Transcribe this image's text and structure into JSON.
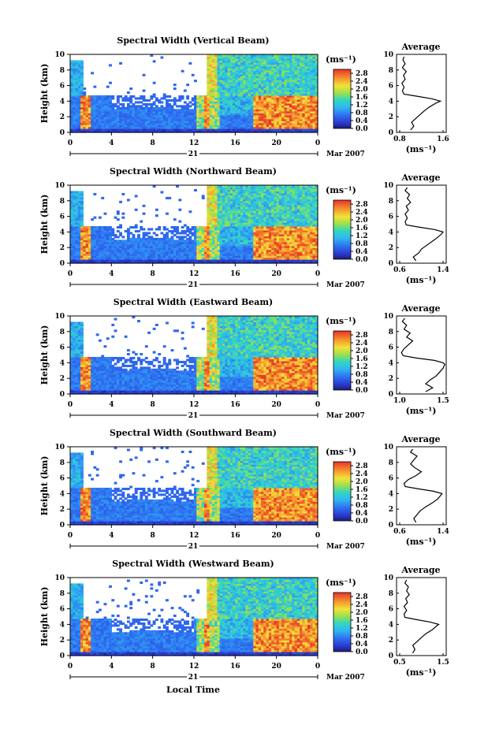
{
  "panels": [
    {
      "title": "Spectral Width (Vertical Beam)",
      "beam": "vertical",
      "avg_xlim": [
        0.8,
        1.6
      ],
      "avg_ticks": [
        "0.8",
        "1.6"
      ]
    },
    {
      "title": "Spectral Width (Northward Beam)",
      "beam": "northward",
      "avg_xlim": [
        0.6,
        1.4
      ],
      "avg_ticks": [
        "0.6",
        "1.4"
      ]
    },
    {
      "title": "Spectral Width (Eastward Beam)",
      "beam": "eastward",
      "avg_xlim": [
        1.0,
        1.5
      ],
      "avg_ticks": [
        "1.0",
        "1.5"
      ]
    },
    {
      "title": "Spectral Width (Southward Beam)",
      "beam": "southward",
      "avg_xlim": [
        0.6,
        1.4
      ],
      "avg_ticks": [
        "0.6",
        "1.4"
      ]
    },
    {
      "title": "Spectral Width (Westward Beam)",
      "beam": "westward",
      "avg_xlim": [
        0.5,
        1.5
      ],
      "avg_ticks": [
        "0.5",
        "1.5"
      ]
    }
  ],
  "labels": {
    "height_axis": "Height (km)",
    "unit": "(ms⁻¹)",
    "average_title": "Average",
    "date_day": "21",
    "date_month_year": "Mar 2007",
    "local_time": "Local Time"
  },
  "chart_data": {
    "type": "heatmap",
    "x_axis": {
      "label": "Local Time",
      "range": [
        0,
        24
      ],
      "ticks": [
        "0",
        "4",
        "8",
        "12",
        "16",
        "20",
        "0"
      ]
    },
    "y_axis": {
      "label": "Height (km)",
      "range": [
        0,
        10
      ],
      "ticks": [
        "0",
        "2",
        "4",
        "6",
        "8",
        "10"
      ]
    },
    "colorbar": {
      "label": "(ms⁻¹)",
      "range": [
        0,
        3.0
      ],
      "ticks": [
        "0.0",
        "0.4",
        "0.8",
        "1.2",
        "1.6",
        "2.0",
        "2.4",
        "2.8"
      ]
    },
    "features": {
      "high_width_columns_hours": [
        [
          1.0,
          2.0
        ],
        [
          12.9,
          13.5
        ],
        [
          17.8,
          24.0
        ]
      ],
      "high_width_layer_km": [
        0.5,
        4.6
      ],
      "upper_echo_layer_km": [
        5.0,
        10.0
      ],
      "lower_layer_top_km": 4.6
    },
    "average_profiles": [
      {
        "beam": "vertical",
        "heights_km": [
          0.3,
          0.8,
          1.3,
          1.8,
          2.3,
          2.8,
          3.3,
          3.8,
          4.0,
          4.3,
          4.6,
          4.9,
          5.3,
          5.8,
          6.3,
          6.8,
          7.3,
          7.8,
          8.3,
          8.8,
          9.3,
          9.7
        ],
        "values": [
          1.0,
          1.06,
          1.02,
          1.1,
          1.18,
          1.26,
          1.36,
          1.48,
          1.55,
          1.4,
          1.15,
          0.88,
          0.85,
          0.88,
          0.84,
          0.9,
          0.87,
          0.92,
          0.85,
          0.9,
          0.86,
          0.88
        ]
      },
      {
        "beam": "northward",
        "heights_km": [
          0.3,
          0.8,
          1.3,
          1.8,
          2.3,
          2.8,
          3.3,
          3.8,
          4.0,
          4.3,
          4.6,
          4.9,
          5.3,
          5.8,
          6.3,
          6.8,
          7.3,
          7.8,
          8.3,
          8.8,
          9.3,
          9.7
        ],
        "values": [
          0.9,
          0.85,
          0.95,
          1.0,
          1.1,
          1.2,
          1.3,
          1.38,
          1.4,
          1.25,
          0.98,
          0.72,
          0.7,
          0.74,
          0.7,
          0.76,
          0.72,
          0.8,
          0.74,
          0.78,
          0.7,
          0.74
        ]
      },
      {
        "beam": "eastward",
        "heights_km": [
          0.3,
          0.8,
          1.3,
          1.8,
          2.3,
          2.8,
          3.3,
          3.8,
          4.0,
          4.3,
          4.6,
          4.9,
          5.3,
          5.8,
          6.3,
          6.8,
          7.3,
          7.8,
          8.3,
          8.8,
          9.3,
          9.7
        ],
        "values": [
          1.3,
          1.38,
          1.3,
          1.35,
          1.42,
          1.46,
          1.5,
          1.52,
          1.5,
          1.4,
          1.2,
          1.04,
          1.02,
          1.05,
          1.1,
          1.15,
          1.08,
          1.12,
          1.05,
          1.08,
          1.03,
          1.06
        ]
      },
      {
        "beam": "southward",
        "heights_km": [
          0.3,
          0.8,
          1.3,
          1.8,
          2.3,
          2.8,
          3.3,
          3.8,
          4.0,
          4.3,
          4.6,
          4.9,
          5.3,
          5.8,
          6.3,
          6.8,
          7.3,
          7.8,
          8.3,
          8.8,
          9.3,
          9.7
        ],
        "values": [
          0.9,
          0.86,
          0.92,
          0.98,
          1.08,
          1.2,
          1.3,
          1.36,
          1.38,
          1.22,
          0.95,
          0.7,
          0.68,
          0.76,
          0.9,
          1.0,
          0.88,
          0.8,
          0.86,
          0.92,
          0.8,
          0.84
        ]
      },
      {
        "beam": "westward",
        "heights_km": [
          0.3,
          0.8,
          1.3,
          1.8,
          2.3,
          2.8,
          3.3,
          3.8,
          4.0,
          4.3,
          4.6,
          4.9,
          5.3,
          5.8,
          6.3,
          6.8,
          7.3,
          7.8,
          8.3,
          8.8,
          9.3,
          9.7
        ],
        "values": [
          0.8,
          0.85,
          0.8,
          0.9,
          1.0,
          1.1,
          1.25,
          1.35,
          1.4,
          1.2,
          0.9,
          0.62,
          0.6,
          0.66,
          0.6,
          0.68,
          0.64,
          0.72,
          0.66,
          0.7,
          0.62,
          0.66
        ]
      }
    ]
  }
}
